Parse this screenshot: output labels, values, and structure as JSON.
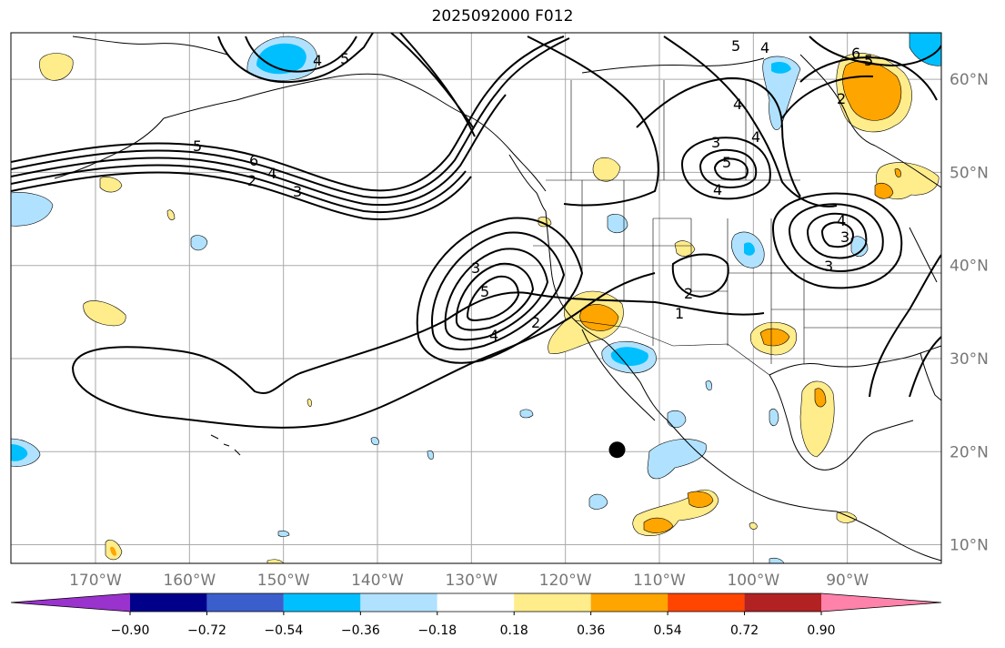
{
  "title": "2025092000 F012",
  "map": {
    "lon_range": [
      -179,
      -80
    ],
    "lat_range": [
      8,
      65
    ],
    "lon_tick_labels": [
      "170°W",
      "160°W",
      "150°W",
      "140°W",
      "130°W",
      "120°W",
      "110°W",
      "100°W",
      "90°W"
    ],
    "lat_tick_labels": [
      "10°N",
      "20°N",
      "30°N",
      "40°N",
      "50°N",
      "60°N"
    ],
    "marker": {
      "lon": -114.5,
      "lat": 20.2,
      "color": "#000000"
    },
    "contour_labels": [
      "1",
      "2",
      "3",
      "4",
      "5",
      "6"
    ]
  },
  "colorbar": {
    "colors": [
      "#9a32cd",
      "#00008b",
      "#3a5fcd",
      "#00bfff",
      "#b0e2ff",
      "#ffffff",
      "#ffec8b",
      "#ffa500",
      "#ff4500",
      "#b22222",
      "#ff82ab"
    ],
    "tick_labels": [
      "−0.90",
      "−0.72",
      "−0.54",
      "−0.36",
      "−0.18",
      "0.18",
      "0.36",
      "0.54",
      "0.72",
      "0.90"
    ]
  }
}
